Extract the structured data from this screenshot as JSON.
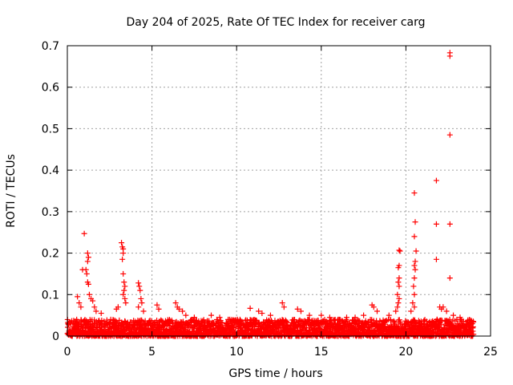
{
  "chart_data": {
    "type": "scatter",
    "title": "Day 204 of 2025, Rate Of TEC Index for receiver carg",
    "xlabel": "GPS time / hours",
    "ylabel": "ROTI / TECUs",
    "xlim": [
      0,
      25
    ],
    "ylim": [
      0,
      0.7
    ],
    "x_ticks": [
      0,
      5,
      10,
      15,
      20,
      25
    ],
    "x_tick_labels": [
      "0",
      "5",
      "10",
      "15",
      "20",
      "25"
    ],
    "y_ticks": [
      0,
      0.1,
      0.2,
      0.3,
      0.4,
      0.5,
      0.6,
      0.7
    ],
    "y_tick_labels": [
      "0",
      "0.1",
      "0.2",
      "0.3",
      "0.4",
      "0.5",
      "0.6",
      "0.7"
    ],
    "grid": true,
    "marker": "+",
    "marker_color": "#ff0000",
    "series": [
      {
        "name": "ROTI",
        "points": [
          [
            1.0,
            0.247
          ],
          [
            0.9,
            0.16
          ],
          [
            1.1,
            0.16
          ],
          [
            1.2,
            0.2
          ],
          [
            1.25,
            0.19
          ],
          [
            1.2,
            0.18
          ],
          [
            1.15,
            0.15
          ],
          [
            1.2,
            0.13
          ],
          [
            1.25,
            0.125
          ],
          [
            1.3,
            0.1
          ],
          [
            1.4,
            0.09
          ],
          [
            1.5,
            0.085
          ],
          [
            0.6,
            0.095
          ],
          [
            0.7,
            0.08
          ],
          [
            0.8,
            0.07
          ],
          [
            1.6,
            0.07
          ],
          [
            1.7,
            0.06
          ],
          [
            2.0,
            0.055
          ],
          [
            3.2,
            0.225
          ],
          [
            3.25,
            0.215
          ],
          [
            3.3,
            0.21
          ],
          [
            3.3,
            0.2
          ],
          [
            3.25,
            0.185
          ],
          [
            3.3,
            0.15
          ],
          [
            3.35,
            0.13
          ],
          [
            3.4,
            0.12
          ],
          [
            3.35,
            0.11
          ],
          [
            3.3,
            0.1
          ],
          [
            3.4,
            0.09
          ],
          [
            3.45,
            0.08
          ],
          [
            2.9,
            0.065
          ],
          [
            3.0,
            0.07
          ],
          [
            4.2,
            0.128
          ],
          [
            4.25,
            0.12
          ],
          [
            4.3,
            0.11
          ],
          [
            4.35,
            0.09
          ],
          [
            4.4,
            0.08
          ],
          [
            4.2,
            0.07
          ],
          [
            4.5,
            0.06
          ],
          [
            5.3,
            0.075
          ],
          [
            5.4,
            0.065
          ],
          [
            6.4,
            0.08
          ],
          [
            6.5,
            0.07
          ],
          [
            6.6,
            0.065
          ],
          [
            6.8,
            0.06
          ],
          [
            7.0,
            0.05
          ],
          [
            7.5,
            0.045
          ],
          [
            8.5,
            0.05
          ],
          [
            9.0,
            0.045
          ],
          [
            9.5,
            0.04
          ],
          [
            10.2,
            0.04
          ],
          [
            10.8,
            0.067
          ],
          [
            11.3,
            0.06
          ],
          [
            11.5,
            0.055
          ],
          [
            12.0,
            0.05
          ],
          [
            12.7,
            0.08
          ],
          [
            12.8,
            0.07
          ],
          [
            13.6,
            0.065
          ],
          [
            13.8,
            0.06
          ],
          [
            14.3,
            0.05
          ],
          [
            15.0,
            0.05
          ],
          [
            15.5,
            0.045
          ],
          [
            16.0,
            0.04
          ],
          [
            16.5,
            0.045
          ],
          [
            17.0,
            0.045
          ],
          [
            17.5,
            0.05
          ],
          [
            18.0,
            0.075
          ],
          [
            18.1,
            0.07
          ],
          [
            18.3,
            0.06
          ],
          [
            19.0,
            0.05
          ],
          [
            19.6,
            0.207
          ],
          [
            19.65,
            0.205
          ],
          [
            19.6,
            0.17
          ],
          [
            19.55,
            0.165
          ],
          [
            19.6,
            0.14
          ],
          [
            19.55,
            0.13
          ],
          [
            19.6,
            0.12
          ],
          [
            19.5,
            0.1
          ],
          [
            19.6,
            0.09
          ],
          [
            19.55,
            0.08
          ],
          [
            19.5,
            0.07
          ],
          [
            19.4,
            0.06
          ],
          [
            20.5,
            0.345
          ],
          [
            20.55,
            0.275
          ],
          [
            20.5,
            0.24
          ],
          [
            20.6,
            0.205
          ],
          [
            20.55,
            0.18
          ],
          [
            20.5,
            0.17
          ],
          [
            20.55,
            0.16
          ],
          [
            20.5,
            0.14
          ],
          [
            20.45,
            0.12
          ],
          [
            20.5,
            0.1
          ],
          [
            20.4,
            0.08
          ],
          [
            20.5,
            0.07
          ],
          [
            20.3,
            0.06
          ],
          [
            21.8,
            0.375
          ],
          [
            21.8,
            0.27
          ],
          [
            21.8,
            0.185
          ],
          [
            22.0,
            0.07
          ],
          [
            22.1,
            0.065
          ],
          [
            22.2,
            0.07
          ],
          [
            22.6,
            0.683
          ],
          [
            22.6,
            0.675
          ],
          [
            22.6,
            0.485
          ],
          [
            22.6,
            0.27
          ],
          [
            22.6,
            0.14
          ],
          [
            22.4,
            0.06
          ],
          [
            22.8,
            0.05
          ],
          [
            23.2,
            0.045
          ],
          [
            23.6,
            0.03
          ]
        ]
      }
    ],
    "baseline_noise": {
      "x_start": 0,
      "x_end": 24,
      "y_min": 0.0,
      "y_max": 0.04,
      "comment_free": true
    }
  }
}
